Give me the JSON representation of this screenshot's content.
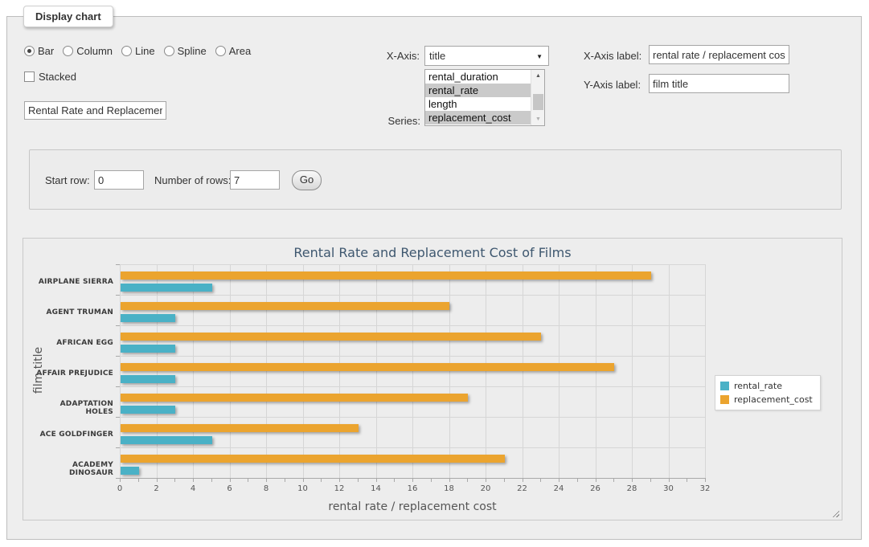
{
  "display_chart": {
    "legend": "Display chart",
    "chart_types": {
      "options": [
        {
          "label": "Bar",
          "selected": true
        },
        {
          "label": "Column",
          "selected": false
        },
        {
          "label": "Line",
          "selected": false
        },
        {
          "label": "Spline",
          "selected": false
        },
        {
          "label": "Area",
          "selected": false
        }
      ]
    },
    "stacked": {
      "label": "Stacked",
      "checked": false
    },
    "title_input": {
      "value": "Rental Rate and Replacement Cost of Films"
    },
    "x_axis": {
      "label": "X-Axis:",
      "selected": "title"
    },
    "series": {
      "label": "Series:",
      "options": [
        {
          "label": "rental_duration",
          "selected": false
        },
        {
          "label": "rental_rate",
          "selected": true
        },
        {
          "label": "length",
          "selected": false
        },
        {
          "label": "replacement_cost",
          "selected": true
        }
      ]
    },
    "x_axis_label": {
      "label": "X-Axis label:",
      "value": "rental rate / replacement cost"
    },
    "y_axis_label": {
      "label": "Y-Axis label:",
      "value": "film title"
    },
    "row_controls": {
      "start_row_label": "Start row:",
      "start_row_value": "0",
      "num_rows_label": "Number of rows:",
      "num_rows_value": "7",
      "go_label": "Go"
    }
  },
  "chart_data": {
    "type": "bar",
    "title": "Rental Rate and Replacement Cost of Films",
    "categories": [
      "AIRPLANE SIERRA",
      "AGENT TRUMAN",
      "AFRICAN EGG",
      "AFFAIR PREJUDICE",
      "ADAPTATION HOLES",
      "ACE GOLDFINGER",
      "ACADEMY DINOSAUR"
    ],
    "series": [
      {
        "name": "rental_rate",
        "color": "#4AB1C6",
        "values": [
          4.99,
          2.99,
          2.99,
          2.99,
          2.99,
          4.99,
          0.99
        ]
      },
      {
        "name": "replacement_cost",
        "color": "#EBA42F",
        "values": [
          28.99,
          17.99,
          22.99,
          26.99,
          18.99,
          12.99,
          20.99
        ]
      }
    ],
    "xlabel": "rental rate / replacement cost",
    "ylabel": "film title",
    "xlim": [
      0,
      32
    ],
    "tick_interval": 2,
    "minor_tick_interval": 1,
    "grid": true,
    "legend_position": "right",
    "background": "#ededed"
  }
}
